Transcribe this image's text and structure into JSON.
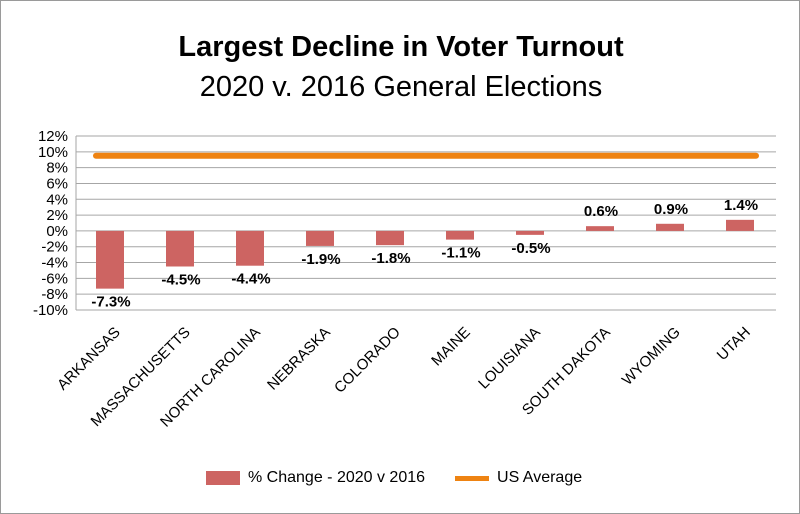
{
  "chart_data": {
    "type": "bar",
    "title": "Largest Decline in Voter Turnout",
    "subtitle": "2020 v. 2016 General Elections",
    "categories": [
      "ARKANSAS",
      "MASSACHUSETTS",
      "NORTH CAROLINA",
      "NEBRASKA",
      "COLORADO",
      "MAINE",
      "LOUISIANA",
      "SOUTH DAKOTA",
      "WYOMING",
      "UTAH"
    ],
    "series": [
      {
        "name": "% Change - 2020 v 2016",
        "type": "bar",
        "color": "#cd6462",
        "values": [
          -7.3,
          -4.5,
          -4.4,
          -1.9,
          -1.8,
          -1.1,
          -0.5,
          0.6,
          0.9,
          1.4
        ],
        "labels": [
          "-7.3%",
          "-4.5%",
          "-4.4%",
          "-1.9%",
          "-1.8%",
          "-1.1%",
          "-0.5%",
          "0.6%",
          "0.9%",
          "1.4%"
        ]
      },
      {
        "name": "US Average",
        "type": "line",
        "color": "#ee8312",
        "value": 9.5
      }
    ],
    "ylim": [
      -10,
      12
    ],
    "yticks": [
      "12%",
      "10%",
      "8%",
      "6%",
      "4%",
      "2%",
      "0%",
      "-2%",
      "-4%",
      "-6%",
      "-8%",
      "-10%"
    ],
    "grid": true,
    "legend": "bottom"
  }
}
